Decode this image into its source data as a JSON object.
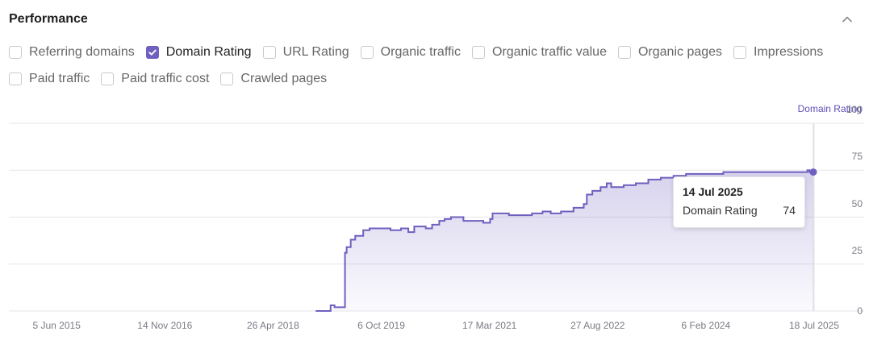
{
  "header": {
    "title": "Performance"
  },
  "metrics": [
    {
      "label": "Referring domains",
      "checked": false
    },
    {
      "label": "Domain Rating",
      "checked": true
    },
    {
      "label": "URL Rating",
      "checked": false
    },
    {
      "label": "Organic traffic",
      "checked": false
    },
    {
      "label": "Organic traffic value",
      "checked": false
    },
    {
      "label": "Organic pages",
      "checked": false
    },
    {
      "label": "Impressions",
      "checked": false
    },
    {
      "label": "Paid traffic",
      "checked": false
    },
    {
      "label": "Paid traffic cost",
      "checked": false
    },
    {
      "label": "Crawled pages",
      "checked": false
    }
  ],
  "colors": {
    "accent": "#6f5fbf",
    "grid": "#e6e6ea",
    "text_muted": "#7a7a85"
  },
  "icons": {
    "collapse": "chevron-up-icon",
    "check": "check-icon"
  },
  "chart_data": {
    "type": "line",
    "ylabel": "Domain Rating",
    "ylim": [
      0,
      100
    ],
    "yticks": [
      0,
      25,
      50,
      75,
      100
    ],
    "xlim": [
      "2014-10-15",
      "2025-07-18"
    ],
    "xticks": [
      "5 Jun 2015",
      "14 Nov 2016",
      "26 Apr 2018",
      "6 Oct 2019",
      "17 Mar 2021",
      "27 Aug 2022",
      "6 Feb 2024",
      "18 Jul 2025"
    ],
    "xtick_dates": [
      "2015-06-05",
      "2016-11-14",
      "2018-04-26",
      "2019-10-06",
      "2021-03-17",
      "2022-08-27",
      "2024-02-06",
      "2025-07-18"
    ],
    "grid": true,
    "legend": "none",
    "area_fill": true,
    "series": [
      {
        "points": [
          [
            "2018-11-20",
            0
          ],
          [
            "2019-01-10",
            0
          ],
          [
            "2019-02-01",
            3
          ],
          [
            "2019-02-20",
            2
          ],
          [
            "2019-04-10",
            2
          ],
          [
            "2019-04-12",
            31
          ],
          [
            "2019-04-20",
            34
          ],
          [
            "2019-05-10",
            38
          ],
          [
            "2019-06-01",
            40
          ],
          [
            "2019-07-10",
            43
          ],
          [
            "2019-08-10",
            44
          ],
          [
            "2019-10-15",
            44
          ],
          [
            "2019-11-20",
            43
          ],
          [
            "2020-01-10",
            44
          ],
          [
            "2020-02-15",
            42
          ],
          [
            "2020-03-15",
            45
          ],
          [
            "2020-05-10",
            44
          ],
          [
            "2020-06-10",
            46
          ],
          [
            "2020-07-15",
            48
          ],
          [
            "2020-08-10",
            49
          ],
          [
            "2020-09-10",
            50
          ],
          [
            "2020-11-10",
            48
          ],
          [
            "2021-01-10",
            48
          ],
          [
            "2021-02-15",
            47
          ],
          [
            "2021-03-20",
            49
          ],
          [
            "2021-04-01",
            52
          ],
          [
            "2021-06-01",
            52
          ],
          [
            "2021-06-20",
            51
          ],
          [
            "2021-09-01",
            51
          ],
          [
            "2021-10-10",
            52
          ],
          [
            "2021-12-01",
            53
          ],
          [
            "2022-01-10",
            52
          ],
          [
            "2022-03-01",
            53
          ],
          [
            "2022-05-01",
            55
          ],
          [
            "2022-06-20",
            57
          ],
          [
            "2022-07-05",
            62
          ],
          [
            "2022-08-01",
            64
          ],
          [
            "2022-09-10",
            66
          ],
          [
            "2022-10-10",
            68
          ],
          [
            "2022-11-01",
            66
          ],
          [
            "2023-01-01",
            67
          ],
          [
            "2023-03-01",
            68
          ],
          [
            "2023-05-01",
            70
          ],
          [
            "2023-07-01",
            71
          ],
          [
            "2023-09-01",
            72
          ],
          [
            "2023-11-01",
            73
          ],
          [
            "2024-03-01",
            73
          ],
          [
            "2024-05-01",
            74
          ],
          [
            "2025-06-01",
            74
          ],
          [
            "2025-06-15",
            75
          ],
          [
            "2025-06-25",
            74
          ],
          [
            "2025-07-14",
            74
          ]
        ]
      }
    ],
    "highlight": {
      "date": "2025-07-14",
      "value": 74
    }
  },
  "tooltip": {
    "date": "14 Jul 2025",
    "series_label": "Domain Rating",
    "value": "74"
  }
}
